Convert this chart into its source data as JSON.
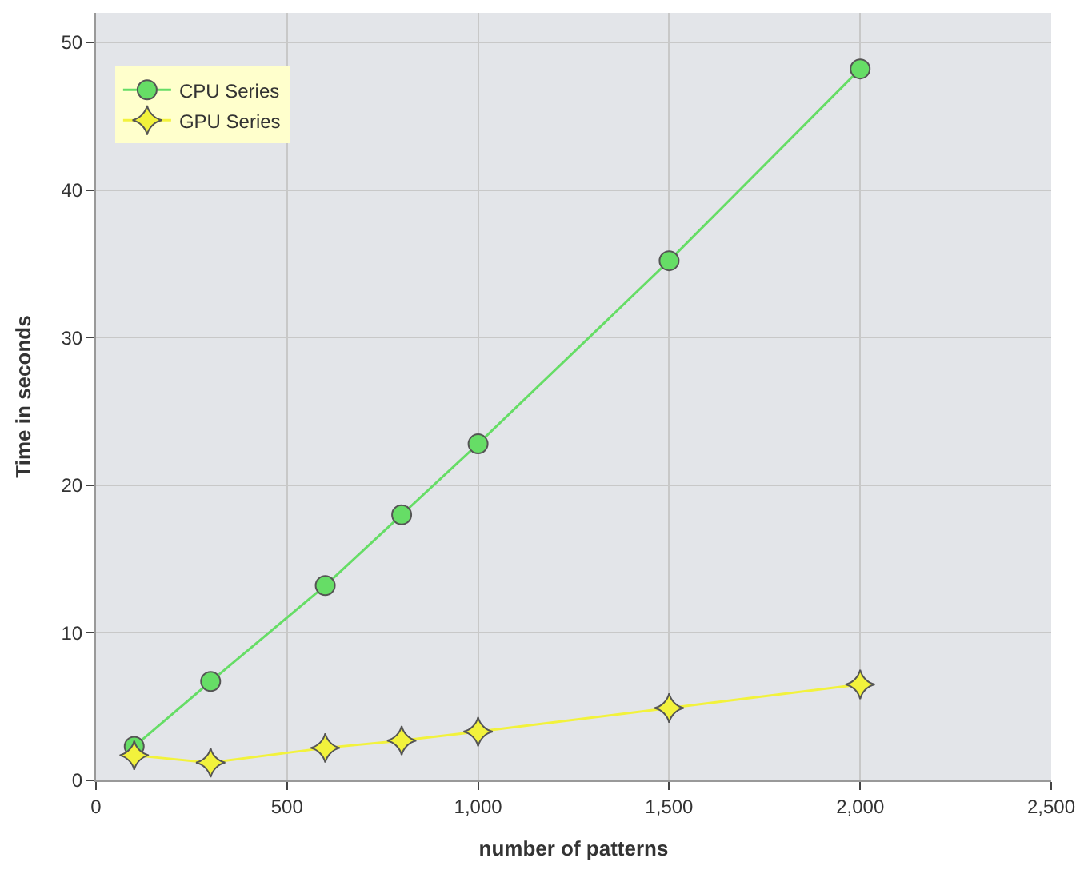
{
  "chart_data": {
    "type": "line",
    "xlabel": "number of patterns",
    "ylabel": "Time in seconds",
    "xlim": [
      0,
      2500
    ],
    "ylim": [
      0,
      52
    ],
    "xticks": [
      0,
      500,
      {
        "value": 1000,
        "label": "1,000"
      },
      {
        "value": 1500,
        "label": "1,500"
      },
      {
        "value": 2000,
        "label": "2,000"
      },
      {
        "value": 2500,
        "label": "2,500"
      }
    ],
    "yticks": [
      0,
      10,
      20,
      30,
      40,
      50
    ],
    "grid": true,
    "legend": "top left",
    "series": [
      {
        "name": "CPU Series",
        "color": "#66dd66",
        "marker": "circle",
        "x": [
          100,
          300,
          600,
          800,
          1000,
          1500,
          2000
        ],
        "values": [
          2.3,
          6.7,
          13.2,
          18.0,
          22.8,
          35.2,
          48.2
        ]
      },
      {
        "name": "GPU Series",
        "color": "#f2f23c",
        "marker": "star",
        "x": [
          100,
          300,
          600,
          800,
          1000,
          1500,
          2000
        ],
        "values": [
          1.7,
          1.2,
          2.2,
          2.7,
          3.3,
          4.9,
          6.5
        ]
      }
    ]
  }
}
